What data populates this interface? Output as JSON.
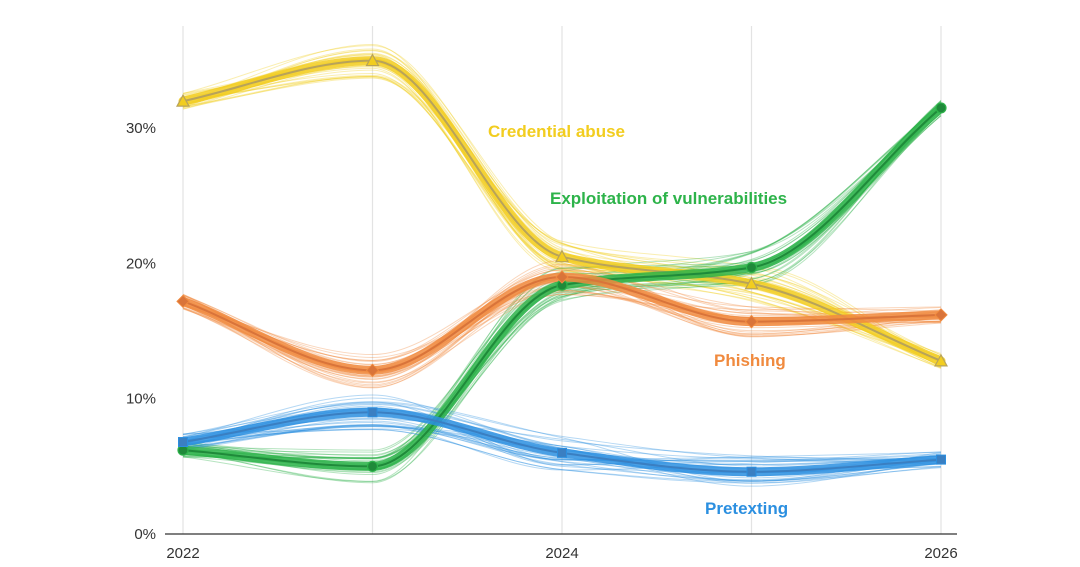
{
  "chart_data": {
    "type": "line",
    "x": [
      2022,
      2023,
      2024,
      2025,
      2026
    ],
    "x_tick_labels": [
      "2022",
      "2024",
      "2026"
    ],
    "x_tick_values": [
      2022,
      2024,
      2026
    ],
    "y_tick_labels": [
      "0%",
      "10%",
      "20%",
      "30%"
    ],
    "y_tick_values": [
      0,
      10,
      20,
      30
    ],
    "ylim": [
      0,
      38
    ],
    "xlim": [
      2022,
      2026
    ],
    "grid": "vertical",
    "series": [
      {
        "name": "Credential abuse",
        "color": "#f2cd1f",
        "line_color": "#b8a35a",
        "marker": "triangle",
        "values": [
          32,
          35,
          20.5,
          18.5,
          12.8
        ]
      },
      {
        "name": "Exploitation of vulnerabilities",
        "color": "#2db34a",
        "line_color": "#1f8a3a",
        "marker": "circle",
        "values": [
          6.2,
          5,
          18.4,
          19.7,
          31.5
        ]
      },
      {
        "name": "Phishing",
        "color": "#f08a3e",
        "line_color": "#d9743a",
        "marker": "diamond",
        "values": [
          17.2,
          12.1,
          19,
          15.7,
          16.2
        ]
      },
      {
        "name": "Pretexting",
        "color": "#2b8fe0",
        "line_color": "#3a7fc2",
        "marker": "square",
        "values": [
          6.8,
          9,
          6,
          4.6,
          5.5
        ]
      }
    ]
  }
}
